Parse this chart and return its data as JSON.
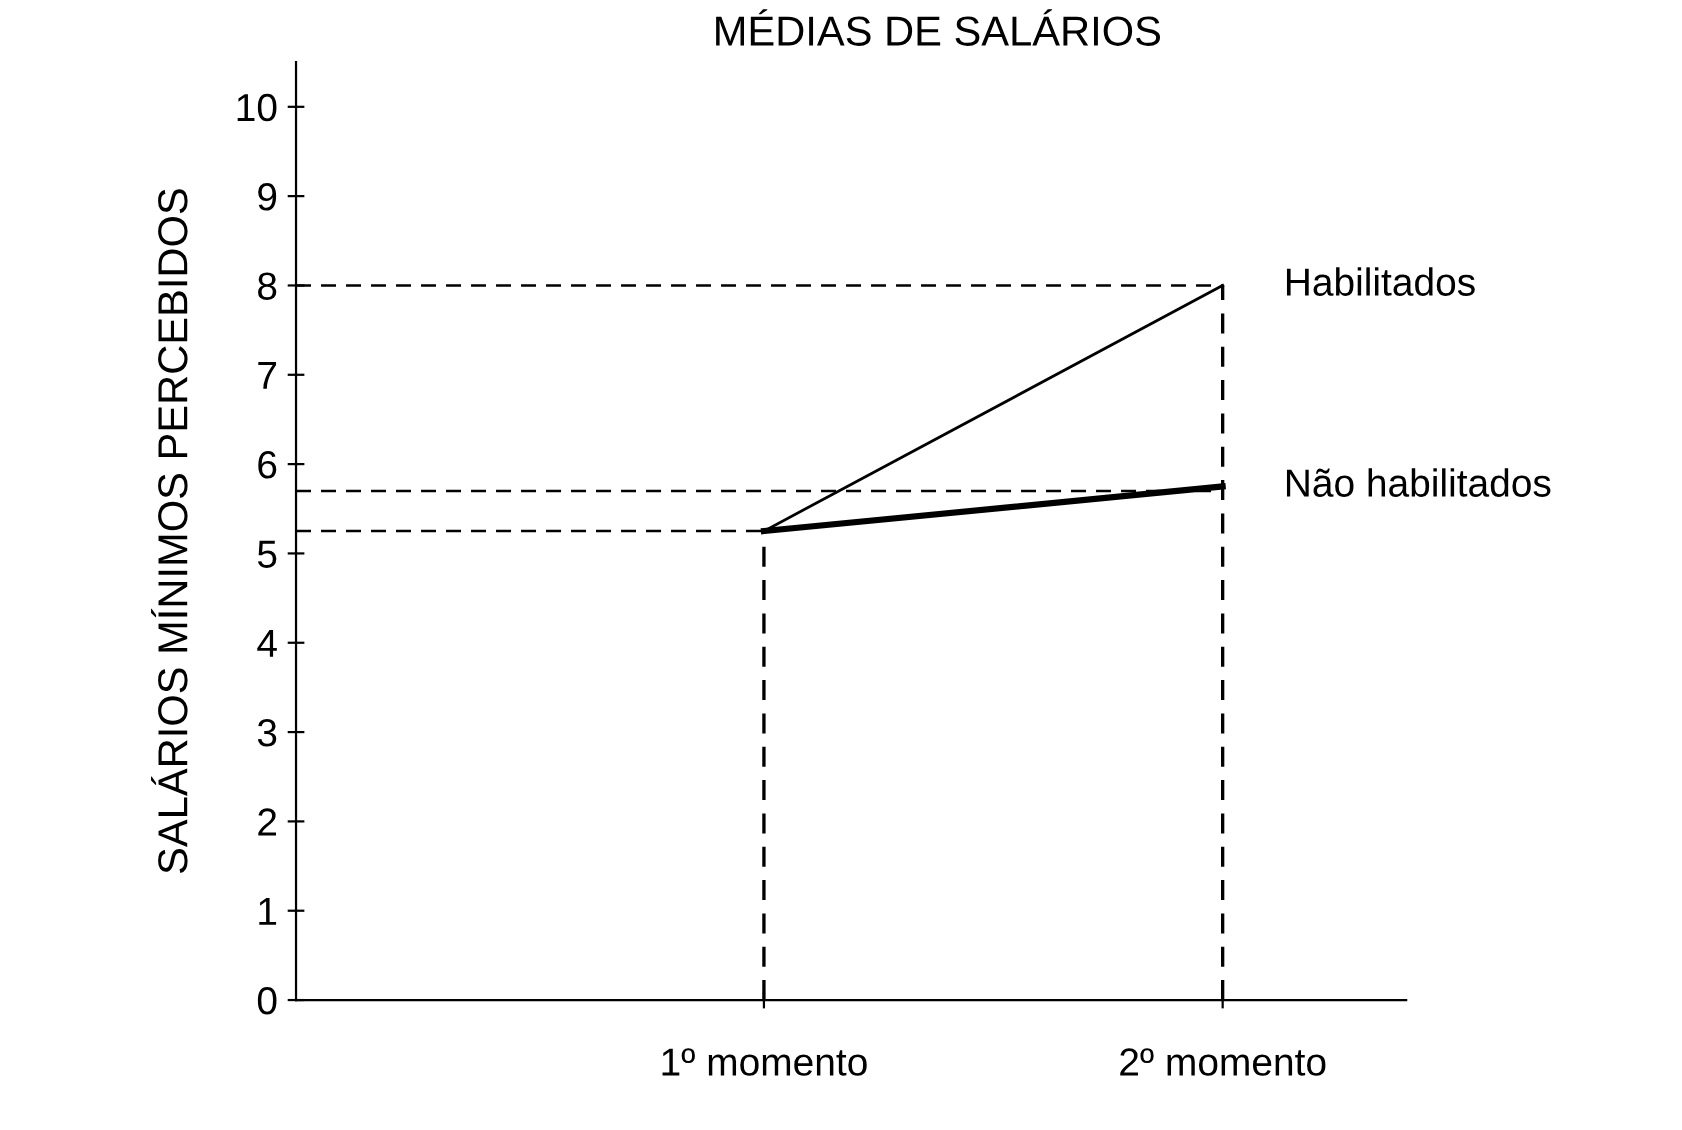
{
  "chart_data": {
    "type": "line",
    "title": "MÉDIAS DE SALÁRIOS",
    "ylabel": "SALÁRIOS MÍNIMOS PERCEBIDOS",
    "categories": [
      null,
      "1º momento",
      "2º momento"
    ],
    "series": [
      {
        "name": "Habilitados",
        "color": "#000000",
        "values": [
          null,
          5.25,
          8
        ]
      },
      {
        "name": "Não habilitados",
        "color": "#000000",
        "values": [
          null,
          5.25,
          5.75
        ]
      }
    ],
    "ylim": [
      0,
      10.5
    ],
    "yticks": [
      0,
      1,
      2,
      3,
      4,
      5,
      6,
      7,
      8,
      9,
      10
    ],
    "ref_lines": [
      {
        "axis": "y",
        "value": 8,
        "line_style": "dashed",
        "color": "#000000"
      },
      {
        "axis": "y",
        "value": 5.7,
        "line_style": "dashed",
        "color": "#000000"
      },
      {
        "axis": "y",
        "value": 5.25,
        "line_style": "dashed",
        "color": "#000000"
      },
      {
        "axis": "x",
        "value": "1º momento",
        "line_style": "dashed",
        "color": "#000000"
      },
      {
        "axis": "x",
        "value": "2º momento",
        "line_style": "dashed",
        "color": "#000000"
      }
    ],
    "grid": false,
    "legend": false,
    "marker": "none",
    "line_style": "solid"
  }
}
